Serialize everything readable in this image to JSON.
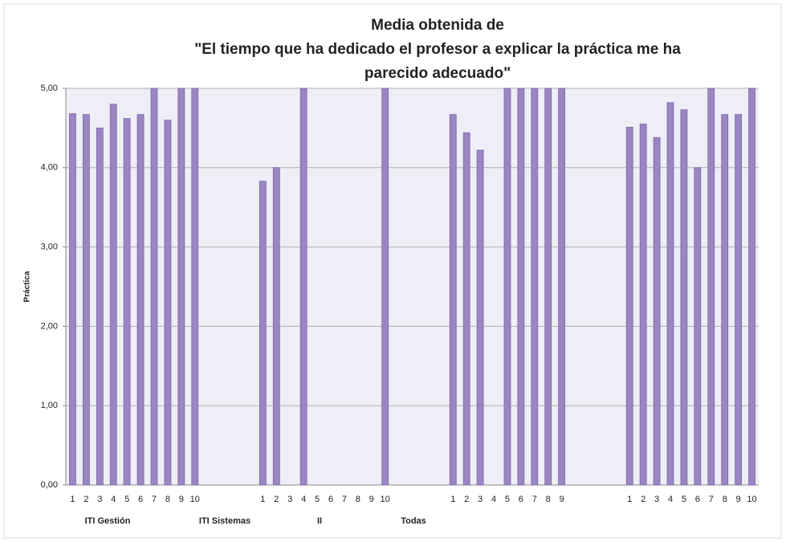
{
  "chart_data": {
    "type": "bar",
    "title": [
      "Media obtenida de",
      "\"El tiempo que ha dedicado el profesor a explicar la práctica me ha",
      "parecido adecuado\""
    ],
    "y_label": "Práctica",
    "categories": [
      "1",
      "2",
      "3",
      "4",
      "5",
      "6",
      "7",
      "8",
      "9",
      "10",
      null,
      null,
      null,
      null,
      "1",
      "2",
      "3",
      "4",
      "5",
      "6",
      "7",
      "8",
      "9",
      "10",
      null,
      null,
      null,
      null,
      "1",
      "2",
      "3",
      "4",
      "5",
      "6",
      "7",
      "8",
      "9",
      null,
      null,
      null,
      null,
      "1",
      "2",
      "3",
      "4",
      "5",
      "6",
      "7",
      "8",
      "9",
      "10"
    ],
    "values": [
      4.68,
      4.67,
      4.5,
      4.8,
      4.62,
      4.67,
      5,
      4.6,
      5,
      5,
      null,
      null,
      null,
      null,
      3.83,
      4.0,
      null,
      5,
      null,
      null,
      null,
      null,
      null,
      5,
      null,
      null,
      null,
      null,
      4.67,
      4.44,
      4.22,
      null,
      5,
      5,
      5,
      5,
      5,
      null,
      null,
      null,
      null,
      4.51,
      4.55,
      4.38,
      4.82,
      4.73,
      4.0,
      5,
      4.67,
      4.67,
      5
    ],
    "groups": [
      "ITI Gestión",
      "ITI Sistemas",
      "II",
      "Todas"
    ],
    "color": "#9a86c2",
    "ylim": [
      0,
      5
    ],
    "yticks": [
      {
        "value": 0,
        "label": "0,00"
      },
      {
        "value": 1,
        "label": "1,00"
      },
      {
        "value": 2,
        "label": "2,00"
      },
      {
        "value": 3,
        "label": "3,00"
      },
      {
        "value": 4,
        "label": "4,00"
      },
      {
        "value": 5,
        "label": "5,00"
      }
    ],
    "grid": true
  }
}
